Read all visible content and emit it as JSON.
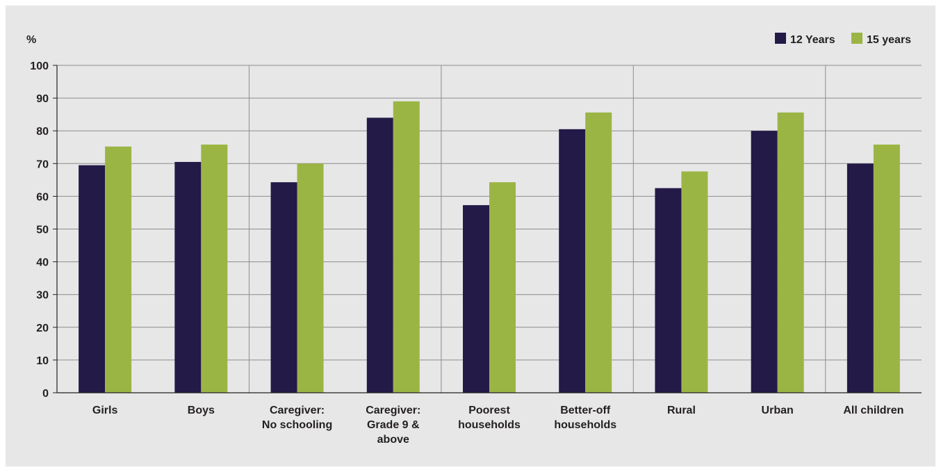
{
  "chart_data": {
    "type": "bar",
    "ylabel": "%",
    "ylim": [
      0,
      100
    ],
    "yticks": [
      0,
      10,
      20,
      30,
      40,
      50,
      60,
      70,
      80,
      90,
      100
    ],
    "grid": true,
    "legend_position": "top-right",
    "categories": [
      [
        "Girls"
      ],
      [
        "Boys"
      ],
      [
        "Caregiver:",
        "No schooling"
      ],
      [
        "Caregiver:",
        "Grade 9 &",
        "above"
      ],
      [
        "Poorest",
        "households"
      ],
      [
        "Better-off",
        "households"
      ],
      [
        "Rural"
      ],
      [
        "Urban"
      ],
      [
        "All children"
      ]
    ],
    "group_separators_after": [
      1,
      3,
      5,
      7
    ],
    "series": [
      {
        "name": "12 Years",
        "color": "#231a47",
        "values": [
          69.5,
          70.5,
          64.3,
          84,
          57.3,
          80.5,
          62.5,
          80,
          70
        ]
      },
      {
        "name": "15 years",
        "color": "#9bb544",
        "values": [
          75.2,
          75.8,
          70,
          89,
          64.3,
          85.6,
          67.6,
          85.6,
          75.8
        ]
      }
    ]
  }
}
